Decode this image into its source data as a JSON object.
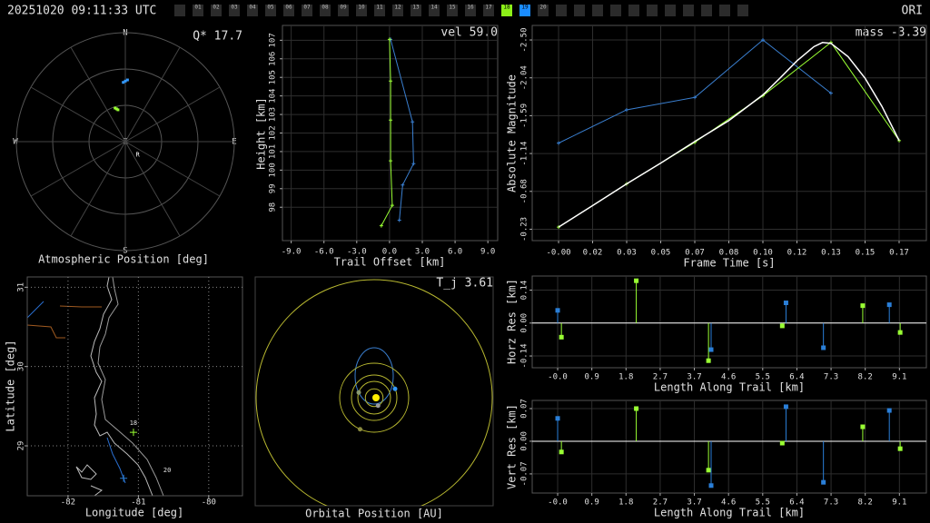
{
  "header": {
    "timestamp": "20251020 09:11:33 UTC",
    "station": "ORI",
    "frames": [
      null,
      "01",
      "02",
      "03",
      "04",
      "05",
      "06",
      "07",
      "08",
      "09",
      "10",
      "11",
      "12",
      "13",
      "14",
      "15",
      "16",
      "17",
      "18",
      "19",
      "20",
      null,
      null,
      null,
      null,
      null,
      null,
      null,
      null,
      null,
      null,
      null
    ],
    "frame_colors": [
      "#2b2b2b",
      "#2b2b2b",
      "#2b2b2b",
      "#2b2b2b",
      "#2b2b2b",
      "#2b2b2b",
      "#2b2b2b",
      "#2b2b2b",
      "#2b2b2b",
      "#2b2b2b",
      "#2b2b2b",
      "#2b2b2b",
      "#2b2b2b",
      "#2b2b2b",
      "#2b2b2b",
      "#2b2b2b",
      "#2b2b2b",
      "#2b2b2b",
      "#8cf018",
      "#1a8cff",
      "#2b2b2b",
      "#2b2b2b",
      "#2b2b2b",
      "#2b2b2b",
      "#2b2b2b",
      "#2b2b2b",
      "#2b2b2b",
      "#2b2b2b",
      "#2b2b2b",
      "#2b2b2b",
      "#2b2b2b",
      "#2b2b2b"
    ]
  },
  "chart_data": [
    {
      "type": "polar",
      "title": "Atmospheric Position [deg]",
      "annotation": "Q* 17.7",
      "directions": {
        "north": "N",
        "east": "E",
        "south": "S",
        "west": "W",
        "zenith": "Z"
      },
      "elev_rings": [
        0,
        30,
        60
      ],
      "az_spokes": [
        0,
        30,
        60,
        90,
        120,
        150,
        180,
        210,
        240,
        270,
        300,
        330
      ],
      "series": [
        {
          "color": "#3399ff",
          "az": [
            358,
            0,
            2
          ],
          "elev": [
            41,
            40,
            39
          ]
        },
        {
          "color": "#99ff33",
          "az": [
            343,
            345,
            347
          ],
          "elev": [
            61,
            62,
            63
          ]
        }
      ],
      "radiant": {
        "label": "R",
        "az": 137,
        "elev": 75
      }
    },
    {
      "type": "line",
      "annotation": "vel 59.0",
      "x_label": "Trail Offset [km]",
      "y_label": "Height [km]",
      "xlim": [
        -9.8,
        9.9
      ],
      "xticks": [
        {
          "value": -9,
          "label": "-9.0"
        },
        {
          "value": -6,
          "label": "-6.0"
        },
        {
          "value": -3,
          "label": "-3.0"
        },
        {
          "value": 0,
          "label": "0.0"
        },
        {
          "value": 3,
          "label": "3.0"
        },
        {
          "value": 6,
          "label": "6.0"
        },
        {
          "value": 9,
          "label": "9.0"
        }
      ],
      "ylim": [
        96.2,
        107.8
      ],
      "yticks": [
        98,
        99,
        100,
        101,
        102,
        103,
        104,
        105,
        106,
        107
      ],
      "grid": true,
      "series": [
        {
          "color": "#3a7fd0",
          "x": [
            0.1,
            2.1,
            2.2,
            1.2,
            0.9
          ],
          "values": [
            107.05,
            102.6,
            100.35,
            99.2,
            97.3
          ]
        },
        {
          "color": "#99ff33",
          "x": [
            0.0,
            0.1,
            0.1,
            0.1,
            0.25,
            -0.75
          ],
          "values": [
            107.05,
            104.8,
            102.7,
            100.5,
            98.1,
            97.0
          ]
        }
      ]
    },
    {
      "type": "line",
      "annotation": "mass -3.39",
      "x_label": "Frame Time [s]",
      "y_label": "Absolute Magnitude",
      "xlim": [
        -0.0129,
        0.18
      ],
      "xticks": [
        {
          "value": 0,
          "label": "-0.00"
        },
        {
          "value": 0.016667,
          "label": "0.02"
        },
        {
          "value": 0.033333,
          "label": "0.03"
        },
        {
          "value": 0.05,
          "label": "0.05"
        },
        {
          "value": 0.066667,
          "label": "0.07"
        },
        {
          "value": 0.083333,
          "label": "0.08"
        },
        {
          "value": 0.1,
          "label": "0.10"
        },
        {
          "value": 0.116667,
          "label": "0.12"
        },
        {
          "value": 0.133333,
          "label": "0.13"
        },
        {
          "value": 0.15,
          "label": "0.15"
        },
        {
          "value": 0.166667,
          "label": "0.17"
        }
      ],
      "ylim": [
        -0.088,
        -2.675
      ],
      "yticks": [
        {
          "value": -2.5,
          "label": "-2.50"
        },
        {
          "value": -2.045,
          "label": "-2.04"
        },
        -1.59,
        {
          "value": -1.135,
          "label": "-1.14"
        },
        -0.68,
        {
          "value": -0.225,
          "label": "-0.23"
        }
      ],
      "grid": true,
      "series": [
        {
          "color": "#3a7fd0",
          "x": [
            0,
            0.0333,
            0.0667,
            0.1,
            0.1333
          ],
          "values": [
            -1.26,
            -1.66,
            -1.81,
            -2.5,
            -1.86
          ]
        },
        {
          "color": "#99ff33",
          "x": [
            0,
            0.0333,
            0.0667,
            0.1,
            0.1333,
            0.1667
          ],
          "values": [
            -0.25,
            -0.77,
            -1.27,
            -1.83,
            -2.47,
            -1.29
          ]
        },
        {
          "color": "#ffffff",
          "markers": false,
          "x": [
            0,
            0.0167,
            0.0333,
            0.05,
            0.0667,
            0.0833,
            0.1,
            0.1083,
            0.1167,
            0.125,
            0.1292,
            0.1333,
            0.1417,
            0.15,
            0.1583,
            0.1667
          ],
          "values": [
            -0.25,
            -0.51,
            -0.77,
            -1.02,
            -1.28,
            -1.53,
            -1.84,
            -2.04,
            -2.25,
            -2.42,
            -2.47,
            -2.46,
            -2.3,
            -2.04,
            -1.7,
            -1.29
          ]
        }
      ]
    },
    {
      "type": "stem",
      "x_label": "Length Along Trail [km]",
      "y_label": "Horz Res [km]",
      "xlim": [
        -0.68,
        9.85
      ],
      "xticks": [
        {
          "value": 0,
          "label": "-0.0"
        },
        {
          "value": 0.913,
          "label": "0.9"
        },
        {
          "value": 1.826,
          "label": "1.8"
        },
        {
          "value": 2.739,
          "label": "2.7"
        },
        {
          "value": 3.652,
          "label": "3.7"
        },
        {
          "value": 4.565,
          "label": "4.6"
        },
        {
          "value": 5.478,
          "label": "5.5"
        },
        {
          "value": 6.391,
          "label": "6.4"
        },
        {
          "value": 7.304,
          "label": "7.3"
        },
        {
          "value": 8.217,
          "label": "8.2"
        },
        {
          "value": 9.13,
          "label": "9.1"
        }
      ],
      "ylim": [
        -0.19,
        0.2
      ],
      "yticks": [
        0.14,
        {
          "value": 0,
          "label": "0.00"
        },
        -0.14
      ],
      "grid": true,
      "series": [
        {
          "color": "#99ff33",
          "x": [
            0.1,
            2.1,
            4.03,
            6.0,
            8.15,
            9.15
          ],
          "values": [
            -0.06,
            0.18,
            -0.16,
            -0.012,
            0.074,
            -0.04
          ]
        },
        {
          "color": "#2a7fd8",
          "x": [
            0,
            4.1,
            6.1,
            7.1,
            8.86
          ],
          "values": [
            0.054,
            -0.113,
            0.086,
            -0.105,
            0.078
          ]
        }
      ]
    },
    {
      "type": "stem",
      "x_label": "Length Along Trail [km]",
      "y_label": "Vert Res [km]",
      "xlim": [
        -0.68,
        9.85
      ],
      "xticks": [
        {
          "value": 0,
          "label": "-0.0"
        },
        {
          "value": 0.913,
          "label": "0.9"
        },
        {
          "value": 1.826,
          "label": "1.8"
        },
        {
          "value": 2.739,
          "label": "2.7"
        },
        {
          "value": 3.652,
          "label": "3.7"
        },
        {
          "value": 4.565,
          "label": "4.6"
        },
        {
          "value": 5.478,
          "label": "5.5"
        },
        {
          "value": 6.391,
          "label": "6.4"
        },
        {
          "value": 7.304,
          "label": "7.3"
        },
        {
          "value": 8.217,
          "label": "8.2"
        },
        {
          "value": 9.13,
          "label": "9.1"
        }
      ],
      "ylim": [
        -0.111,
        0.0875
      ],
      "yticks": [
        0.07,
        {
          "value": 0,
          "label": "0.00"
        },
        -0.07
      ],
      "grid": true,
      "series": [
        {
          "color": "#99ff33",
          "x": [
            0.1,
            2.1,
            4.03,
            6.0,
            8.15,
            9.15
          ],
          "values": [
            -0.023,
            0.07,
            -0.062,
            -0.004,
            0.031,
            -0.016
          ]
        },
        {
          "color": "#2a7fd8",
          "x": [
            0,
            4.1,
            6.1,
            7.1,
            8.86
          ],
          "values": [
            0.049,
            -0.095,
            0.074,
            -0.088,
            0.066
          ]
        }
      ]
    },
    {
      "type": "map",
      "x_label": "Longitude [deg]",
      "y_label": "Latitude [deg]",
      "xlim": [
        -82.58,
        -79.52
      ],
      "xticks": [
        -82,
        -81,
        -80
      ],
      "ylim": [
        28.37,
        31.13
      ],
      "yticks": [
        31,
        30,
        29
      ],
      "grid": "dotted",
      "stations": [
        {
          "label": "18",
          "color": "#99ff33",
          "lon": -81.07,
          "lat": 29.17
        },
        {
          "label": "20",
          "color": "#2a7fd8",
          "lon": -81.21,
          "lat": 28.59
        }
      ]
    },
    {
      "type": "orbit",
      "title": "Orbital Position [AU]",
      "annotation": "T_j 3.61",
      "orbit_color": "#b8b830",
      "orbits": [
        0.39,
        0.72,
        1.0,
        1.52,
        5.2
      ],
      "bodies": [
        {
          "color": "#9a9a9a",
          "x": 0.17,
          "y": -0.35
        },
        {
          "color": "#8a9a70",
          "x": -0.68,
          "y": 0.23
        },
        {
          "color": "#3399ff",
          "x": 0.92,
          "y": 0.39
        },
        {
          "color": "#8a8a40",
          "x": -0.62,
          "y": -1.39
        }
      ]
    }
  ]
}
